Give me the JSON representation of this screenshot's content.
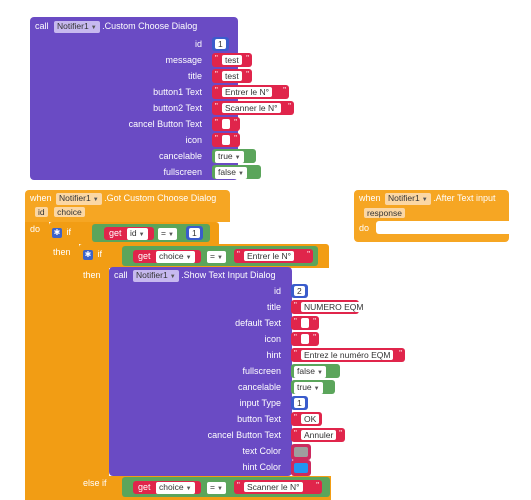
{
  "block1": {
    "call": "call",
    "component": "Notifier1",
    "method": ".Custom Choose Dialog",
    "params": [
      {
        "label": "id",
        "kind": "num",
        "value": "1"
      },
      {
        "label": "message",
        "kind": "text",
        "value": "test"
      },
      {
        "label": "title",
        "kind": "text",
        "value": "test"
      },
      {
        "label": "button1 Text",
        "kind": "text",
        "value": "Entrer le N°"
      },
      {
        "label": "button2 Text",
        "kind": "text",
        "value": "Scanner le N°"
      },
      {
        "label": "cancel Button Text",
        "kind": "text",
        "value": ""
      },
      {
        "label": "icon",
        "kind": "text",
        "value": ""
      },
      {
        "label": "cancelable",
        "kind": "bool",
        "value": "true"
      },
      {
        "label": "fullscreen",
        "kind": "bool",
        "value": "false"
      }
    ]
  },
  "block2": {
    "when": "when",
    "component": "Notifier1",
    "event": ".Got Custom Choose Dialog",
    "args": [
      "id",
      "choice"
    ],
    "do": "do",
    "if1": {
      "keyword": "if",
      "get": "get",
      "var": "id",
      "op": "=",
      "value": "1",
      "then": "then"
    },
    "if2": {
      "keyword": "if",
      "get": "get",
      "var": "choice",
      "op": "=",
      "value": "Entrer le N°",
      "then": "then"
    },
    "call": "call",
    "component2": "Notifier1",
    "method": ".Show Text Input Dialog",
    "params": [
      {
        "label": "id",
        "kind": "num",
        "value": "2"
      },
      {
        "label": "title",
        "kind": "text",
        "value": "NUMERO EQM"
      },
      {
        "label": "default Text",
        "kind": "text",
        "value": ""
      },
      {
        "label": "icon",
        "kind": "text",
        "value": ""
      },
      {
        "label": "hint",
        "kind": "text",
        "value": "Entrez le numéro EQM"
      },
      {
        "label": "fullscreen",
        "kind": "bool",
        "value": "false"
      },
      {
        "label": "cancelable",
        "kind": "bool",
        "value": "true"
      },
      {
        "label": "input Type",
        "kind": "num",
        "value": "1"
      },
      {
        "label": "button Text",
        "kind": "text",
        "value": "OK"
      },
      {
        "label": "cancel Button Text",
        "kind": "text",
        "value": "Annuler"
      },
      {
        "label": "text Color",
        "kind": "color",
        "value": "#9e9e9e"
      },
      {
        "label": "hint Color",
        "kind": "color",
        "value": "#2196f3"
      }
    ],
    "elseif": {
      "keyword": "else if",
      "get": "get",
      "var": "choice",
      "op": "=",
      "value": "Scanner le N°"
    }
  },
  "block3": {
    "when": "when",
    "component": "Notifier1",
    "event": ".After Text input",
    "arg": "response",
    "do": "do"
  }
}
